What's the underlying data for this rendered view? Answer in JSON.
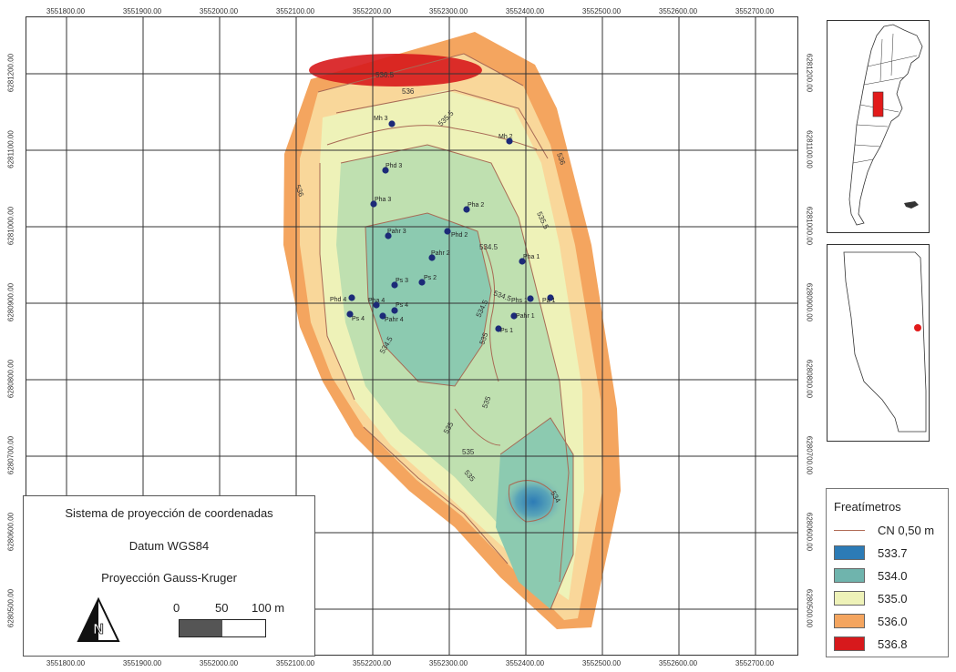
{
  "x_ticks": [
    "3551800.00",
    "3551900.00",
    "3552000.00",
    "3552100.00",
    "3552200.00",
    "3552300.00",
    "3552400.00",
    "3552500.00",
    "3552600.00",
    "3552700.00"
  ],
  "y_ticks": [
    "6281200.00",
    "6281100.00",
    "6281000.00",
    "6280900.00",
    "6280800.00",
    "6280700.00",
    "6280600.00",
    "6280500.00"
  ],
  "contour_labels": [
    "536.5",
    "536",
    "535.5",
    "536",
    "536",
    "535.5",
    "534.5",
    "534.5",
    "534.5",
    "534.5",
    "535",
    "535",
    "535",
    "535",
    "535",
    "534"
  ],
  "wells": [
    "Mh 3",
    "Mh 2",
    "Phd 3",
    "Pha 3",
    "Pha 2",
    "Pahr 3",
    "Phd 2",
    "Pahr 2",
    "Pha 1",
    "Ps 3",
    "Ps 2",
    "Phd 4",
    "Pha 4",
    "Ps 4",
    "Pahr 4",
    "Phs 1",
    "Pa 1",
    "Pahr 1",
    "Ps 1",
    "Ps 4"
  ],
  "legend": {
    "title": "Freatímetros",
    "contour": "CN 0,50 m",
    "classes": [
      {
        "label": "533.7",
        "color": "#2c7bb6"
      },
      {
        "label": "534.0",
        "color": "#6fb4ad"
      },
      {
        "label": "535.0",
        "color": "#eef2b8"
      },
      {
        "label": "536.0",
        "color": "#f4a55f"
      },
      {
        "label": "536.8",
        "color": "#d7191c"
      }
    ]
  },
  "info": {
    "line1": "Sistema de proyección de coordenadas",
    "line2": "Datum WGS84",
    "line3": "Proyección Gauss-Kruger",
    "scale_0": "0",
    "scale_50": "50",
    "scale_100": "100 m"
  },
  "colors": {
    "contour": "#a86a55",
    "well": "#1c2a78",
    "inset_highlight": "#e21b1b"
  }
}
